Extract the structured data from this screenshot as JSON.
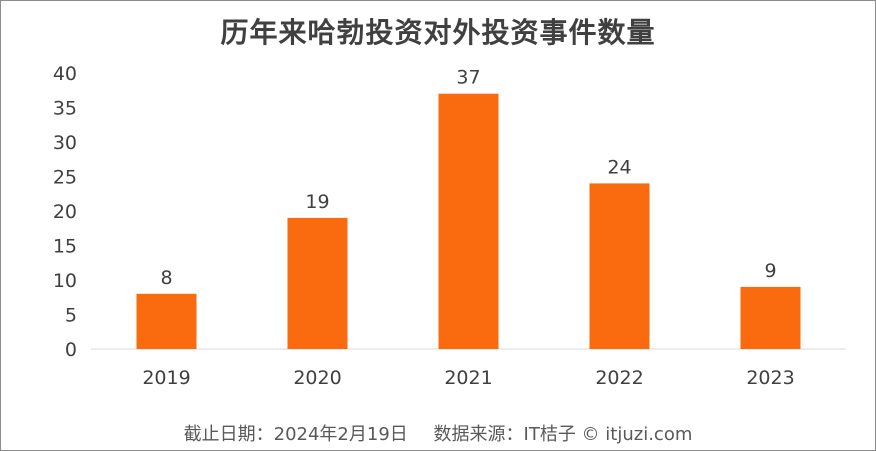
{
  "chart_data": {
    "type": "bar",
    "title": "历年来哈勃投资对外投资事件数量",
    "categories": [
      "2019",
      "2020",
      "2021",
      "2022",
      "2023"
    ],
    "values": [
      8,
      19,
      37,
      24,
      9
    ],
    "ylim": [
      0,
      40
    ],
    "yticks": [
      0,
      5,
      10,
      15,
      20,
      25,
      30,
      35,
      40
    ],
    "xlabel": "",
    "ylabel": "",
    "grid": false,
    "bar_color": "#fa6a0f",
    "data_labels": true
  },
  "footer": {
    "date": "截止日期：2024年2月19日",
    "source": "数据来源：IT桔子 © itjuzi.com"
  }
}
